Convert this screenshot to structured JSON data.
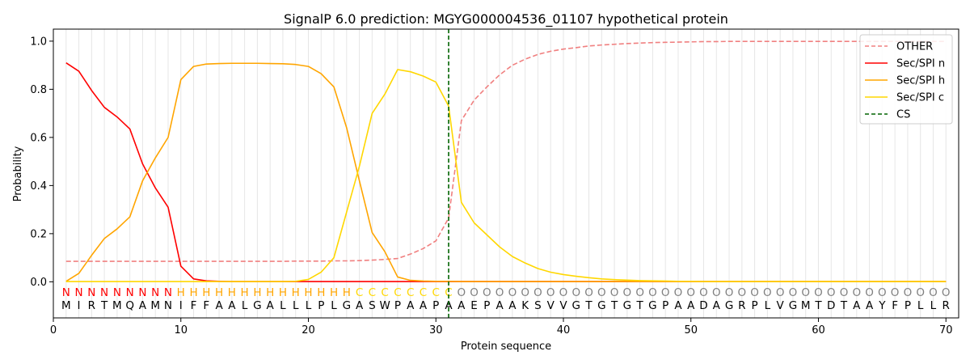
{
  "chart_data": {
    "type": "line",
    "title": "SignalP 6.0 prediction: MGYG000004536_01107 hypothetical protein",
    "xlabel": "Protein sequence",
    "ylabel": "Probability",
    "xlim": [
      0,
      71
    ],
    "ylim": [
      -0.15,
      1.05
    ],
    "xticks": [
      0,
      10,
      20,
      30,
      40,
      50,
      60,
      70
    ],
    "yticks": [
      "0.0",
      "0.2",
      "0.4",
      "0.6",
      "0.8",
      "1.0"
    ],
    "grid": "vertical lines at each residue",
    "legend_position": "top-right",
    "cleavage_site": 31,
    "sequence": [
      "M",
      "I",
      "R",
      "T",
      "M",
      "Q",
      "A",
      "M",
      "N",
      "I",
      "F",
      "F",
      "A",
      "A",
      "L",
      "G",
      "A",
      "L",
      "L",
      "L",
      "P",
      "L",
      "G",
      "A",
      "S",
      "W",
      "P",
      "A",
      "A",
      "P",
      "A",
      "A",
      "E",
      "P",
      "A",
      "A",
      "K",
      "S",
      "V",
      "V",
      "G",
      "T",
      "G",
      "T",
      "G",
      "T",
      "G",
      "P",
      "A",
      "A",
      "D",
      "A",
      "G",
      "R",
      "P",
      "L",
      "V",
      "G",
      "M",
      "T",
      "D",
      "T",
      "A",
      "A",
      "Y",
      "F",
      "P",
      "L",
      "L",
      "R"
    ],
    "labels": [
      "N",
      "N",
      "N",
      "N",
      "N",
      "N",
      "N",
      "N",
      "N",
      "H",
      "H",
      "H",
      "H",
      "H",
      "H",
      "H",
      "H",
      "H",
      "H",
      "H",
      "H",
      "H",
      "H",
      "C",
      "C",
      "C",
      "C",
      "C",
      "C",
      "C",
      "C",
      "O",
      "O",
      "O",
      "O",
      "O",
      "O",
      "O",
      "O",
      "O",
      "O",
      "O",
      "O",
      "O",
      "O",
      "O",
      "O",
      "O",
      "O",
      "O",
      "O",
      "O",
      "O",
      "O",
      "O",
      "O",
      "O",
      "O",
      "O",
      "O",
      "O",
      "O",
      "O",
      "O",
      "O",
      "O",
      "O",
      "O",
      "O",
      "O"
    ],
    "label_colors": {
      "N": "#ff0000",
      "H": "#ffa500",
      "C": "#ffd700",
      "O": "#808080"
    },
    "series": [
      {
        "name": "OTHER",
        "color": "#f08080",
        "dashed": true,
        "values": [
          0.085,
          0.085,
          0.085,
          0.085,
          0.085,
          0.085,
          0.085,
          0.085,
          0.085,
          0.085,
          0.085,
          0.085,
          0.085,
          0.085,
          0.085,
          0.085,
          0.085,
          0.085,
          0.086,
          0.086,
          0.086,
          0.087,
          0.087,
          0.088,
          0.09,
          0.093,
          0.097,
          0.115,
          0.138,
          0.17,
          0.265,
          0.67,
          0.755,
          0.81,
          0.86,
          0.9,
          0.925,
          0.945,
          0.958,
          0.967,
          0.973,
          0.98,
          0.984,
          0.987,
          0.99,
          0.992,
          0.994,
          0.995,
          0.996,
          0.997,
          0.998,
          0.998,
          0.999,
          0.999,
          0.999,
          0.999,
          0.999,
          0.999,
          0.999,
          0.999,
          0.999,
          0.999,
          0.999,
          0.999,
          0.999,
          0.999,
          0.999,
          0.999,
          0.999,
          0.999
        ]
      },
      {
        "name": "Sec/SPI n",
        "color": "#ff0000",
        "dashed": false,
        "values": [
          0.91,
          0.875,
          0.795,
          0.725,
          0.685,
          0.635,
          0.49,
          0.39,
          0.31,
          0.065,
          0.012,
          0.004,
          0.002,
          0.001,
          0.001,
          0.001,
          0.001,
          0.001,
          0.001,
          0.001,
          0.001,
          0.001,
          0.001,
          0.001,
          0.001,
          0.001,
          0.001,
          0.001,
          0.001,
          0.001,
          0.001,
          0.001,
          0.001,
          0.001,
          0.001,
          0.001,
          0.001,
          0.001,
          0.001,
          0.001,
          0.001,
          0.001,
          0.001,
          0.001,
          0.001,
          0.001,
          0.001,
          0.001,
          0.001,
          0.001,
          0.001,
          0.001,
          0.001,
          0.001,
          0.001,
          0.001,
          0.001,
          0.001,
          0.001,
          0.001,
          0.001,
          0.001,
          0.001,
          0.001,
          0.001,
          0.001,
          0.001,
          0.001,
          0.001,
          0.001
        ]
      },
      {
        "name": "Sec/SPI h",
        "color": "#ffa500",
        "dashed": false,
        "values": [
          0.002,
          0.035,
          0.11,
          0.18,
          0.22,
          0.27,
          0.42,
          0.515,
          0.6,
          0.84,
          0.895,
          0.905,
          0.907,
          0.908,
          0.908,
          0.908,
          0.907,
          0.906,
          0.903,
          0.895,
          0.865,
          0.81,
          0.64,
          0.42,
          0.205,
          0.125,
          0.02,
          0.006,
          0.003,
          0.002,
          0.002,
          0.001,
          0.001,
          0.001,
          0.001,
          0.001,
          0.001,
          0.001,
          0.001,
          0.001,
          0.001,
          0.001,
          0.001,
          0.001,
          0.001,
          0.001,
          0.001,
          0.001,
          0.001,
          0.001,
          0.001,
          0.001,
          0.001,
          0.001,
          0.001,
          0.001,
          0.001,
          0.001,
          0.001,
          0.001,
          0.001,
          0.001,
          0.001,
          0.001,
          0.001,
          0.001,
          0.001,
          0.001,
          0.001,
          0.001
        ]
      },
      {
        "name": "Sec/SPI c",
        "color": "#ffd700",
        "dashed": false,
        "values": [
          0.001,
          0.001,
          0.001,
          0.001,
          0.001,
          0.001,
          0.001,
          0.001,
          0.001,
          0.001,
          0.001,
          0.001,
          0.001,
          0.001,
          0.001,
          0.001,
          0.001,
          0.001,
          0.002,
          0.01,
          0.04,
          0.1,
          0.29,
          0.48,
          0.7,
          0.78,
          0.882,
          0.873,
          0.855,
          0.83,
          0.73,
          0.33,
          0.245,
          0.195,
          0.145,
          0.105,
          0.078,
          0.055,
          0.04,
          0.03,
          0.023,
          0.017,
          0.012,
          0.009,
          0.007,
          0.005,
          0.004,
          0.003,
          0.002,
          0.002,
          0.001,
          0.001,
          0.001,
          0.001,
          0.001,
          0.001,
          0.001,
          0.001,
          0.001,
          0.001,
          0.001,
          0.001,
          0.001,
          0.001,
          0.001,
          0.001,
          0.001,
          0.001,
          0.001,
          0.001
        ]
      }
    ],
    "cs_line": {
      "name": "CS",
      "color": "#006400"
    }
  }
}
